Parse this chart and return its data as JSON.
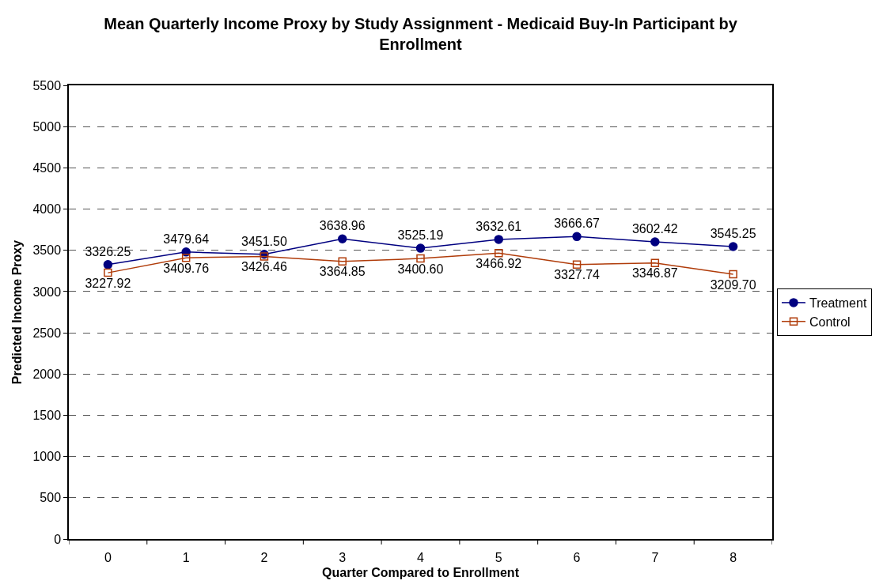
{
  "chart_data": {
    "type": "line",
    "title": "Mean Quarterly Income Proxy by Study Assignment - Medicaid Buy-In Participant by Enrollment",
    "xlabel": "Quarter Compared to Enrollment",
    "ylabel": "Predicted Income Proxy",
    "categories": [
      "0",
      "1",
      "2",
      "3",
      "4",
      "5",
      "6",
      "7",
      "8"
    ],
    "series": [
      {
        "name": "Treatment",
        "color": "#000080",
        "marker": "circle",
        "values": [
          3326.25,
          3479.64,
          3451.5,
          3638.96,
          3525.19,
          3632.61,
          3666.67,
          3602.42,
          3545.25
        ],
        "value_labels": [
          "3326.25",
          "3479.64",
          "3451.50",
          "3638.96",
          "3525.19",
          "3632.61",
          "3666.67",
          "3602.42",
          "3545.25"
        ]
      },
      {
        "name": "Control",
        "color": "#b03c0a",
        "marker": "square",
        "values": [
          3227.92,
          3409.76,
          3426.46,
          3364.85,
          3400.6,
          3466.92,
          3327.74,
          3346.87,
          3209.7
        ],
        "value_labels": [
          "3227.92",
          "3409.76",
          "3426.46",
          "3364.85",
          "3400.60",
          "3466.92",
          "3327.74",
          "3346.87",
          "3209.70"
        ]
      }
    ],
    "ylim": [
      0,
      5500
    ],
    "yticks": [
      0,
      500,
      1000,
      1500,
      2000,
      2500,
      3000,
      3500,
      4000,
      4500,
      5000,
      5500
    ],
    "grid": "y",
    "legend": "right",
    "line_style": "solid"
  }
}
